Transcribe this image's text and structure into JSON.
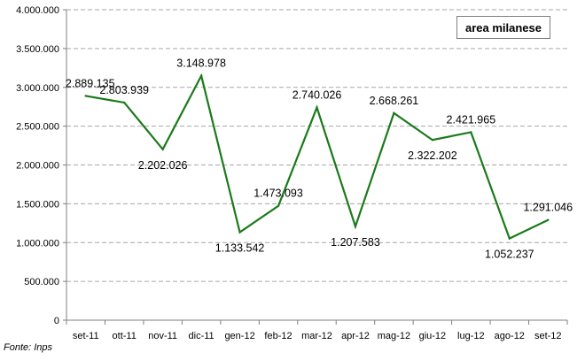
{
  "chart_data": {
    "type": "line",
    "categories": [
      "set-11",
      "ott-11",
      "nov-11",
      "dic-11",
      "gen-12",
      "feb-12",
      "mar-12",
      "apr-12",
      "mag-12",
      "giu-12",
      "lug-12",
      "ago-12",
      "set-12"
    ],
    "series": [
      {
        "name": "area milanese",
        "values": [
          2889135,
          2803939,
          2202026,
          3148978,
          1133542,
          1473093,
          2740026,
          1207583,
          2668261,
          2322202,
          2421965,
          1052237,
          1291046
        ],
        "labels": [
          "2.889.135",
          "2.803.939",
          "2.202.026",
          "3.148.978",
          "1.133.542",
          "1.473.093",
          "2.740.026",
          "1.207.583",
          "2.668.261",
          "2.322.202",
          "2.421.965",
          "1.052.237",
          "1.291.046"
        ],
        "color": "#1a7a1a"
      }
    ],
    "yticks": [
      "0",
      "500.000",
      "1.000.000",
      "1.500.000",
      "2.000.000",
      "2.500.000",
      "3.000.000",
      "3.500.000",
      "4.000.000"
    ],
    "ylim": [
      0,
      4000000
    ],
    "grid": true,
    "legend_position": "top-right"
  },
  "legend_label": "area milanese",
  "source_note": "Fonte: Inps"
}
